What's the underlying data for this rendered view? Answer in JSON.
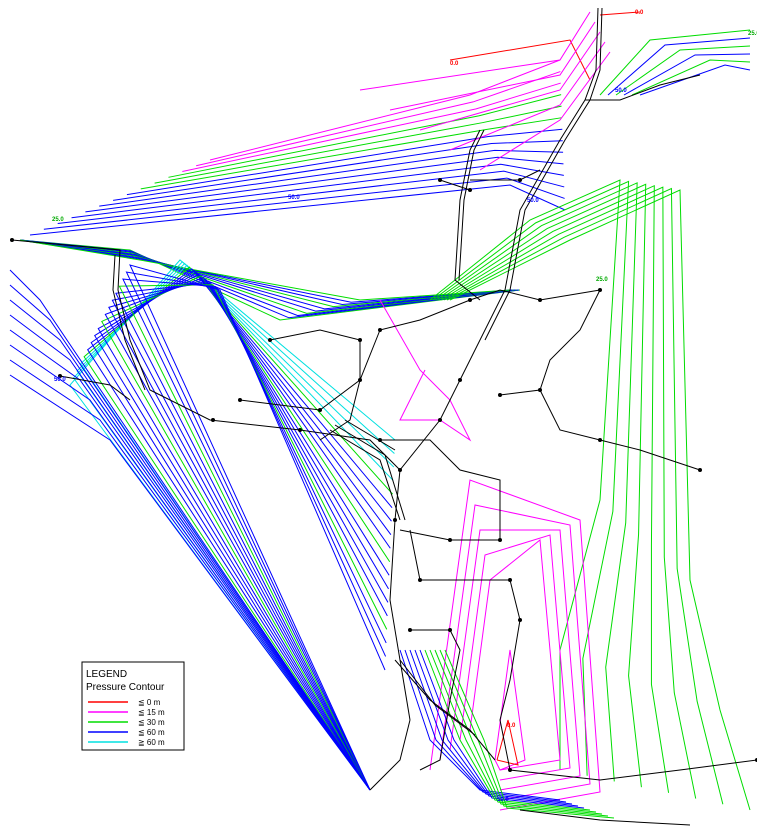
{
  "legend": {
    "title": "LEGEND",
    "subtitle": "Pressure Contour",
    "entries": [
      {
        "label": "≦ 0 m",
        "color": "#ff0000"
      },
      {
        "label": "≦ 15 m",
        "color": "#ff00ff"
      },
      {
        "label": "≦ 30 m",
        "color": "#00dd00"
      },
      {
        "label": "≦ 60 m",
        "color": "#0000ff"
      },
      {
        "label": "≧ 60 m",
        "color": "#00e0e0"
      }
    ]
  },
  "contour_labels": [
    {
      "text": "0.0",
      "color": "#ff0000"
    },
    {
      "text": "0.0",
      "color": "#ff0000"
    },
    {
      "text": "25.0",
      "color": "#00aa00"
    },
    {
      "text": "50.0",
      "color": "#0000ff"
    },
    {
      "text": "25.0",
      "color": "#00aa00"
    },
    {
      "text": "50.0",
      "color": "#0000ff"
    },
    {
      "text": "50.0",
      "color": "#0000ff"
    },
    {
      "text": "25.0",
      "color": "#00aa00"
    },
    {
      "text": "50.0",
      "color": "#0000ff"
    },
    {
      "text": "0.0",
      "color": "#ff0000"
    },
    {
      "text": "50.0",
      "color": "#0000ff"
    }
  ]
}
